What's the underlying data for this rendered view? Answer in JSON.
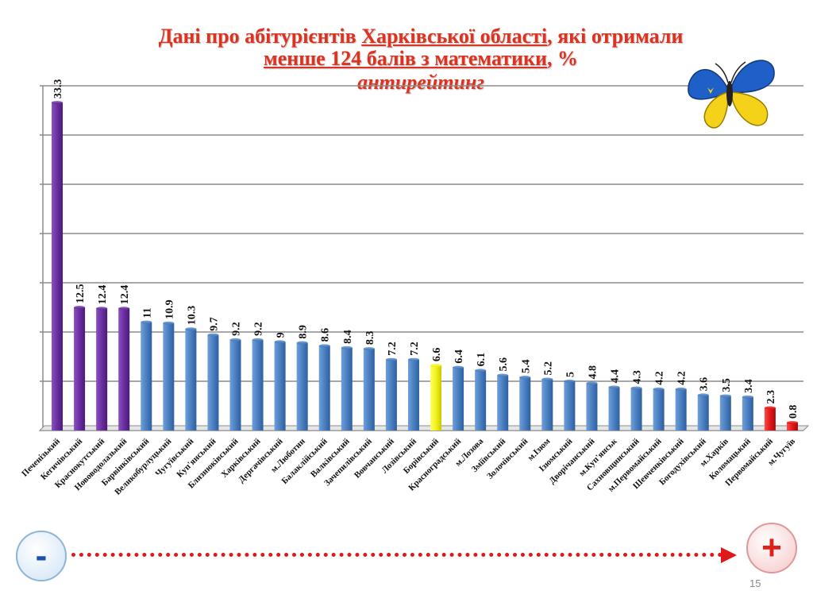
{
  "title": {
    "part1": "Дані про абітурієнтів ",
    "part2": "Харківської  області",
    "part3": ", які отримали",
    "line2_part1": "менше 124 балів  з математики",
    "line2_part2": ", %",
    "subtitle": "антирейтинг"
  },
  "chart_data": {
    "type": "bar",
    "categories": [
      "Печенізький",
      "Кегичівський",
      "Краснокутський",
      "Нововодолазький",
      "Барвінківський",
      "Великобурлуцький",
      "Чугуївський",
      "Куп'янський",
      "Близнюківський",
      "Харківський",
      "Дергачівський",
      "м.Люботин",
      "Балаклійський",
      "Валківський",
      "Зачепилівський",
      "Вовчанський",
      "Лозівський",
      "Борівський",
      "Красноградський",
      "м.Лозова",
      "Зміївський",
      "Золочівський",
      "м.Ізюм",
      "Ізюмський",
      "Дворічанський",
      "м.Куп'янськ",
      "Сахновщинський",
      "м.Первомайський",
      "Шевченківський",
      "Богодухівський",
      "м.Харків",
      "Коломацький",
      "Первомайський",
      "м.Чугуїв"
    ],
    "values": [
      33.3,
      12.5,
      12.4,
      12.4,
      11,
      10.9,
      10.3,
      9.7,
      9.2,
      9.2,
      9,
      8.9,
      8.6,
      8.4,
      8.3,
      7.2,
      7.2,
      6.6,
      6.4,
      6.1,
      5.6,
      5.4,
      5.2,
      5,
      4.8,
      4.4,
      4.3,
      4.2,
      4.2,
      3.6,
      3.5,
      3.4,
      2.3,
      0.8
    ],
    "value_labels": [
      "33.3",
      "12.5",
      "12.4",
      "12.4",
      "11",
      "10.9",
      "10.3",
      "9.7",
      "9.2",
      "9.2",
      "9",
      "8.9",
      "8.6",
      "8.4",
      "8.3",
      "7.2",
      "7.2",
      "6.6",
      "6.4",
      "6.1",
      "5.6",
      "5.4",
      "5.2",
      "5",
      "4.8",
      "4.4",
      "4.3",
      "4.2",
      "4.2",
      "3.6",
      "3.5",
      "3.4",
      "2.3",
      "0.8"
    ],
    "bar_colors": [
      "#6a2fa0",
      "#6a2fa0",
      "#6a2fa0",
      "#6a2fa0",
      "#4a7fc1",
      "#4a7fc1",
      "#4a7fc1",
      "#4a7fc1",
      "#4a7fc1",
      "#4a7fc1",
      "#4a7fc1",
      "#4a7fc1",
      "#4a7fc1",
      "#4a7fc1",
      "#4a7fc1",
      "#4a7fc1",
      "#4a7fc1",
      "#f2f21a",
      "#4a7fc1",
      "#4a7fc1",
      "#4a7fc1",
      "#4a7fc1",
      "#4a7fc1",
      "#4a7fc1",
      "#4a7fc1",
      "#4a7fc1",
      "#4a7fc1",
      "#4a7fc1",
      "#4a7fc1",
      "#4a7fc1",
      "#4a7fc1",
      "#4a7fc1",
      "#e01818",
      "#e01818"
    ],
    "ylim": [
      0,
      35
    ],
    "grid": true,
    "y_tick_labels_shown": false
  },
  "scale": {
    "minus": "-",
    "plus": "+"
  },
  "page_number": "15",
  "colors": {
    "title": "#e0301e",
    "purple": "#6a2fa0",
    "blue": "#4a7fc1",
    "yellow": "#f2f21a",
    "red": "#e01818"
  },
  "decoration": "butterfly-icon"
}
